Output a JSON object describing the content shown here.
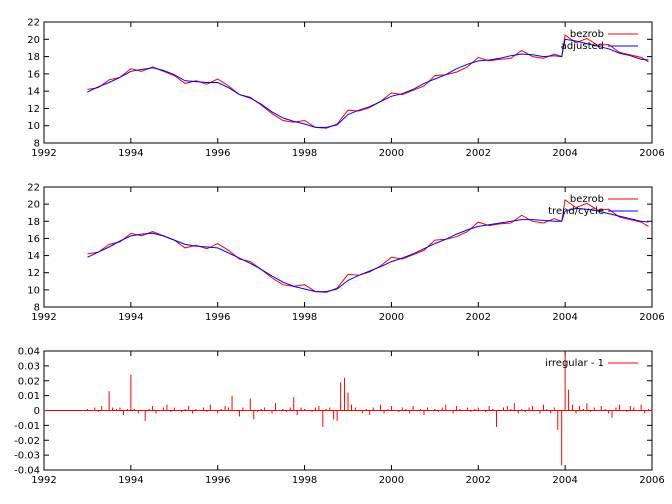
{
  "colors": {
    "red": "#ff0000",
    "blue": "#0000ff",
    "frame": "#000000"
  },
  "chart_data": [
    {
      "type": "line",
      "title": "",
      "xlabel": "",
      "ylabel": "",
      "xlim": [
        1992,
        2006
      ],
      "ylim": [
        8,
        22
      ],
      "xticks": [
        1992,
        1994,
        1996,
        1998,
        2000,
        2002,
        2004,
        2006
      ],
      "yticks": [
        8,
        10,
        12,
        14,
        16,
        18,
        20,
        22
      ],
      "grid": false,
      "legend_position": "top-right",
      "series": [
        {
          "name": "bezrob",
          "color": "#ff0000",
          "x": [
            1993.0,
            1993.25,
            1993.5,
            1993.75,
            1994.0,
            1994.25,
            1994.5,
            1994.75,
            1995.0,
            1995.25,
            1995.5,
            1995.75,
            1996.0,
            1996.25,
            1996.5,
            1996.75,
            1997.0,
            1997.25,
            1997.5,
            1997.75,
            1998.0,
            1998.25,
            1998.5,
            1998.75,
            1999.0,
            1999.25,
            1999.5,
            1999.75,
            2000.0,
            2000.25,
            2000.5,
            2000.75,
            2001.0,
            2001.25,
            2001.5,
            2001.75,
            2002.0,
            2002.25,
            2002.5,
            2002.75,
            2003.0,
            2003.25,
            2003.5,
            2003.75,
            2003.92,
            2004.0,
            2004.25,
            2004.5,
            2004.75,
            2005.0,
            2005.25,
            2005.5,
            2005.75,
            2005.92
          ],
          "values": [
            14.2,
            14.4,
            15.3,
            15.6,
            16.6,
            16.3,
            16.8,
            16.3,
            15.8,
            14.9,
            15.2,
            14.8,
            15.4,
            14.6,
            13.6,
            13.3,
            12.4,
            11.4,
            10.6,
            10.4,
            10.6,
            9.8,
            9.7,
            10.2,
            11.8,
            11.7,
            12.1,
            12.8,
            13.8,
            13.6,
            14.1,
            14.6,
            15.8,
            15.9,
            16.2,
            16.8,
            17.9,
            17.5,
            17.7,
            17.8,
            18.7,
            18.0,
            17.8,
            18.3,
            18.0,
            20.5,
            19.6,
            20.1,
            19.3,
            19.4,
            18.5,
            18.2,
            17.9,
            17.4
          ]
        },
        {
          "name": "adjusted",
          "color": "#0000ff",
          "x": [
            1993.0,
            1993.25,
            1993.5,
            1993.75,
            1994.0,
            1994.25,
            1994.5,
            1994.75,
            1995.0,
            1995.25,
            1995.5,
            1995.75,
            1996.0,
            1996.25,
            1996.5,
            1996.75,
            1997.0,
            1997.25,
            1997.5,
            1997.75,
            1998.0,
            1998.25,
            1998.5,
            1998.75,
            1999.0,
            1999.25,
            1999.5,
            1999.75,
            2000.0,
            2000.25,
            2000.5,
            2000.75,
            2001.0,
            2001.25,
            2001.5,
            2001.75,
            2002.0,
            2002.25,
            2002.5,
            2002.75,
            2003.0,
            2003.25,
            2003.5,
            2003.75,
            2003.92,
            2004.0,
            2004.25,
            2004.5,
            2004.75,
            2005.0,
            2005.25,
            2005.5,
            2005.75,
            2005.92
          ],
          "values": [
            13.9,
            14.5,
            15.0,
            15.6,
            16.3,
            16.5,
            16.7,
            16.4,
            15.9,
            15.2,
            15.1,
            15.0,
            15.0,
            14.4,
            13.6,
            13.2,
            12.5,
            11.6,
            10.9,
            10.5,
            10.2,
            9.8,
            9.8,
            10.1,
            11.3,
            11.8,
            12.2,
            12.8,
            13.4,
            13.7,
            14.2,
            14.9,
            15.4,
            15.9,
            16.6,
            17.1,
            17.5,
            17.6,
            17.8,
            18.1,
            18.3,
            18.2,
            18.0,
            18.1,
            18.0,
            20.0,
            19.8,
            19.5,
            19.2,
            18.9,
            18.4,
            18.1,
            17.7,
            17.6
          ]
        }
      ]
    },
    {
      "type": "line",
      "title": "",
      "xlabel": "",
      "ylabel": "",
      "xlim": [
        1992,
        2006
      ],
      "ylim": [
        8,
        22
      ],
      "xticks": [
        1992,
        1994,
        1996,
        1998,
        2000,
        2002,
        2004,
        2006
      ],
      "yticks": [
        8,
        10,
        12,
        14,
        16,
        18,
        20,
        22
      ],
      "grid": false,
      "legend_position": "top-right",
      "series": [
        {
          "name": "bezrob",
          "color": "#ff0000",
          "x": [
            1993.0,
            1993.25,
            1993.5,
            1993.75,
            1994.0,
            1994.25,
            1994.5,
            1994.75,
            1995.0,
            1995.25,
            1995.5,
            1995.75,
            1996.0,
            1996.25,
            1996.5,
            1996.75,
            1997.0,
            1997.25,
            1997.5,
            1997.75,
            1998.0,
            1998.25,
            1998.5,
            1998.75,
            1999.0,
            1999.25,
            1999.5,
            1999.75,
            2000.0,
            2000.25,
            2000.5,
            2000.75,
            2001.0,
            2001.25,
            2001.5,
            2001.75,
            2002.0,
            2002.25,
            2002.5,
            2002.75,
            2003.0,
            2003.25,
            2003.5,
            2003.75,
            2003.92,
            2004.0,
            2004.25,
            2004.5,
            2004.75,
            2005.0,
            2005.25,
            2005.5,
            2005.75,
            2005.92
          ],
          "values": [
            14.2,
            14.4,
            15.3,
            15.6,
            16.6,
            16.3,
            16.8,
            16.3,
            15.8,
            14.9,
            15.2,
            14.8,
            15.4,
            14.6,
            13.6,
            13.3,
            12.4,
            11.4,
            10.6,
            10.4,
            10.6,
            9.8,
            9.7,
            10.2,
            11.8,
            11.7,
            12.1,
            12.8,
            13.8,
            13.6,
            14.1,
            14.6,
            15.8,
            15.9,
            16.2,
            16.8,
            17.9,
            17.5,
            17.7,
            17.8,
            18.7,
            18.0,
            17.8,
            18.3,
            18.0,
            20.5,
            19.6,
            20.1,
            19.3,
            19.4,
            18.5,
            18.2,
            17.9,
            17.4
          ]
        },
        {
          "name": "trend/cycle",
          "color": "#0000ff",
          "x": [
            1993.0,
            1993.25,
            1993.5,
            1993.75,
            1994.0,
            1994.25,
            1994.5,
            1994.75,
            1995.0,
            1995.25,
            1995.5,
            1995.75,
            1996.0,
            1996.25,
            1996.5,
            1996.75,
            1997.0,
            1997.25,
            1997.5,
            1997.75,
            1998.0,
            1998.25,
            1998.5,
            1998.75,
            1999.0,
            1999.25,
            1999.5,
            1999.75,
            2000.0,
            2000.25,
            2000.5,
            2000.75,
            2001.0,
            2001.25,
            2001.5,
            2001.75,
            2002.0,
            2002.25,
            2002.5,
            2002.75,
            2003.0,
            2003.25,
            2003.5,
            2003.75,
            2003.92,
            2004.0,
            2004.25,
            2004.5,
            2004.75,
            2005.0,
            2005.25,
            2005.5,
            2005.75,
            2005.92
          ],
          "values": [
            13.8,
            14.4,
            15.0,
            15.7,
            16.3,
            16.5,
            16.6,
            16.3,
            15.8,
            15.3,
            15.1,
            15.0,
            14.9,
            14.3,
            13.7,
            13.1,
            12.4,
            11.6,
            10.9,
            10.4,
            10.1,
            9.8,
            9.8,
            10.1,
            11.1,
            11.7,
            12.2,
            12.7,
            13.3,
            13.7,
            14.2,
            14.8,
            15.4,
            15.9,
            16.5,
            17.0,
            17.4,
            17.6,
            17.8,
            18.0,
            18.2,
            18.2,
            18.1,
            18.0,
            18.0,
            19.2,
            19.5,
            19.4,
            19.2,
            18.9,
            18.6,
            18.3,
            18.0,
            17.9
          ]
        }
      ]
    },
    {
      "type": "bar",
      "title": "",
      "xlabel": "",
      "ylabel": "",
      "xlim": [
        1992,
        2006
      ],
      "ylim": [
        -0.04,
        0.04
      ],
      "xticks": [
        1992,
        1994,
        1996,
        1998,
        2000,
        2002,
        2004,
        2006
      ],
      "yticks": [
        -0.04,
        -0.03,
        -0.02,
        -0.01,
        0,
        0.01,
        0.02,
        0.03,
        0.04
      ],
      "ytick_labels": [
        "-0.04",
        "-0.03",
        "-0.02",
        "-0.01",
        "0",
        "0.01",
        "0.02",
        "0.03",
        "0.04"
      ],
      "grid": false,
      "legend_position": "top-right",
      "series": [
        {
          "name": "irregular - 1",
          "color": "#ff0000",
          "x": [
            1993.0,
            1993.08,
            1993.17,
            1993.25,
            1993.33,
            1993.42,
            1993.5,
            1993.58,
            1993.67,
            1993.75,
            1993.83,
            1993.92,
            1994.0,
            1994.08,
            1994.17,
            1994.25,
            1994.33,
            1994.42,
            1994.5,
            1994.58,
            1994.67,
            1994.75,
            1994.83,
            1994.92,
            1995.0,
            1995.08,
            1995.17,
            1995.25,
            1995.33,
            1995.42,
            1995.5,
            1995.58,
            1995.67,
            1995.75,
            1995.83,
            1995.92,
            1996.0,
            1996.08,
            1996.17,
            1996.25,
            1996.33,
            1996.42,
            1996.5,
            1996.58,
            1996.67,
            1996.75,
            1996.83,
            1996.92,
            1997.0,
            1997.08,
            1997.17,
            1997.25,
            1997.33,
            1997.42,
            1997.5,
            1997.58,
            1997.67,
            1997.75,
            1997.83,
            1997.92,
            1998.0,
            1998.08,
            1998.17,
            1998.25,
            1998.33,
            1998.42,
            1998.5,
            1998.58,
            1998.67,
            1998.75,
            1998.83,
            1998.92,
            1999.0,
            1999.08,
            1999.17,
            1999.25,
            1999.33,
            1999.42,
            1999.5,
            1999.58,
            1999.67,
            1999.75,
            1999.83,
            1999.92,
            2000.0,
            2000.08,
            2000.17,
            2000.25,
            2000.33,
            2000.42,
            2000.5,
            2000.58,
            2000.67,
            2000.75,
            2000.83,
            2000.92,
            2001.0,
            2001.08,
            2001.17,
            2001.25,
            2001.33,
            2001.42,
            2001.5,
            2001.58,
            2001.67,
            2001.75,
            2001.83,
            2001.92,
            2002.0,
            2002.08,
            2002.17,
            2002.25,
            2002.33,
            2002.42,
            2002.5,
            2002.58,
            2002.67,
            2002.75,
            2002.83,
            2002.92,
            2003.0,
            2003.08,
            2003.17,
            2003.25,
            2003.33,
            2003.42,
            2003.5,
            2003.58,
            2003.67,
            2003.75,
            2003.83,
            2003.92,
            2004.0,
            2004.08,
            2004.17,
            2004.25,
            2004.33,
            2004.42,
            2004.5,
            2004.58,
            2004.67,
            2004.75,
            2004.83,
            2004.92,
            2005.0,
            2005.08,
            2005.17,
            2005.25,
            2005.33,
            2005.42,
            2005.5,
            2005.58,
            2005.67,
            2005.75,
            2005.83,
            2005.92
          ],
          "values": [
            0.001,
            0.0,
            0.002,
            -0.001,
            0.003,
            0.0,
            0.013,
            0.002,
            0.001,
            0.002,
            -0.003,
            0.001,
            0.024,
            0.001,
            -0.002,
            0.0,
            -0.007,
            0.001,
            0.003,
            -0.002,
            0.0,
            0.002,
            0.004,
            -0.001,
            0.002,
            0.0,
            -0.001,
            0.001,
            0.003,
            -0.002,
            0.001,
            0.0,
            0.002,
            -0.001,
            0.004,
            0.0,
            -0.002,
            0.001,
            0.003,
            0.002,
            0.01,
            0.0,
            -0.004,
            0.002,
            0.0,
            0.008,
            -0.006,
            -0.001,
            0.001,
            0.002,
            0.0,
            -0.002,
            0.005,
            0.0,
            0.001,
            -0.001,
            0.002,
            0.009,
            -0.003,
            0.002,
            0.001,
            0.0,
            -0.001,
            0.002,
            0.003,
            -0.011,
            0.001,
            0.002,
            -0.006,
            -0.007,
            0.019,
            0.022,
            0.012,
            0.004,
            0.002,
            0.0,
            -0.002,
            0.001,
            -0.003,
            0.002,
            0.0,
            0.004,
            -0.002,
            0.001,
            0.003,
            0.0,
            -0.001,
            0.002,
            0.001,
            -0.002,
            0.003,
            0.0,
            0.001,
            -0.003,
            0.002,
            0.0,
            0.001,
            -0.001,
            0.002,
            0.004,
            0.0,
            -0.002,
            0.003,
            0.001,
            0.0,
            0.002,
            -0.001,
            0.001,
            0.002,
            0.0,
            -0.001,
            0.003,
            0.001,
            -0.011,
            0.0,
            0.002,
            0.003,
            0.001,
            0.005,
            -0.002,
            0.001,
            -0.001,
            0.002,
            0.003,
            0.0,
            -0.002,
            0.004,
            0.001,
            -0.002,
            0.002,
            -0.013,
            -0.037,
            0.038,
            0.014,
            0.004,
            -0.002,
            0.003,
            0.001,
            0.005,
            -0.001,
            0.002,
            0.0,
            0.003,
            0.001,
            -0.002,
            -0.005,
            0.002,
            0.004,
            0.0,
            -0.001,
            0.003,
            0.002,
            0.0,
            0.004,
            -0.002,
            0.001
          ]
        }
      ]
    }
  ]
}
